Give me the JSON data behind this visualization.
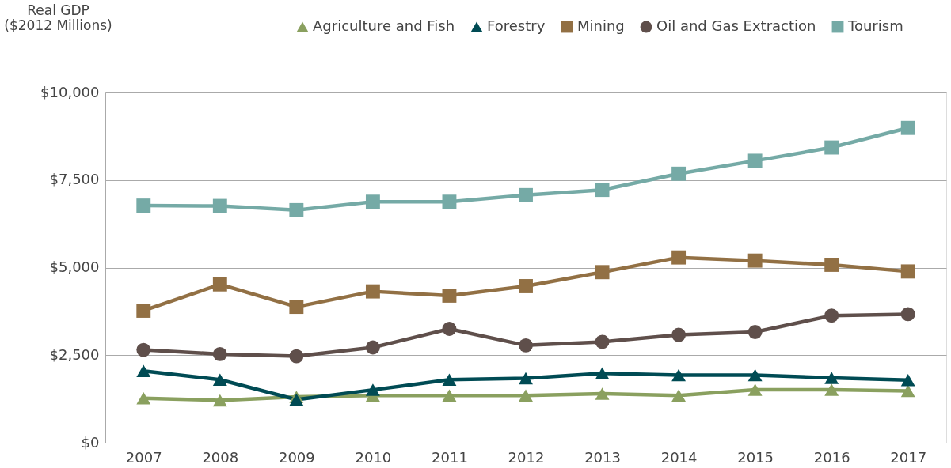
{
  "chart_data": {
    "type": "line",
    "ylabel": "Real GDP\n($2012 Millions)",
    "categories": [
      "2007",
      "2008",
      "2009",
      "2010",
      "2011",
      "2012",
      "2013",
      "2014",
      "2015",
      "2016",
      "2017"
    ],
    "series": [
      {
        "name": "Agriculture and Fish",
        "color": "#8aa05f",
        "marker": "triangle",
        "values": [
          1270,
          1210,
          1310,
          1350,
          1350,
          1350,
          1400,
          1350,
          1510,
          1510,
          1480
        ]
      },
      {
        "name": "Forestry",
        "color": "#004b54",
        "marker": "triangle",
        "values": [
          2050,
          1800,
          1230,
          1510,
          1800,
          1840,
          1980,
          1930,
          1930,
          1850,
          1790
        ]
      },
      {
        "name": "Mining",
        "color": "#927044",
        "marker": "square",
        "values": [
          3770,
          4520,
          3880,
          4320,
          4200,
          4470,
          4870,
          5290,
          5200,
          5080,
          4890
        ]
      },
      {
        "name": "Oil and Gas Extraction",
        "color": "#5f4f4b",
        "marker": "circle",
        "values": [
          2650,
          2530,
          2470,
          2720,
          3250,
          2780,
          2880,
          3080,
          3160,
          3630,
          3670
        ]
      },
      {
        "name": "Tourism",
        "color": "#75aaa6",
        "marker": "square",
        "values": [
          6770,
          6760,
          6640,
          6880,
          6880,
          7070,
          7220,
          7680,
          8050,
          8430,
          8990
        ]
      }
    ],
    "ylim": [
      0,
      10000
    ],
    "yticks": [
      {
        "value": 0,
        "label": "$0"
      },
      {
        "value": 2500,
        "label": "$2,500"
      },
      {
        "value": 5000,
        "label": "$5,000"
      },
      {
        "value": 7500,
        "label": "$7,500"
      },
      {
        "value": 10000,
        "label": "$10,000"
      }
    ],
    "grid": "y",
    "legend": "top",
    "line_style": "solid"
  }
}
